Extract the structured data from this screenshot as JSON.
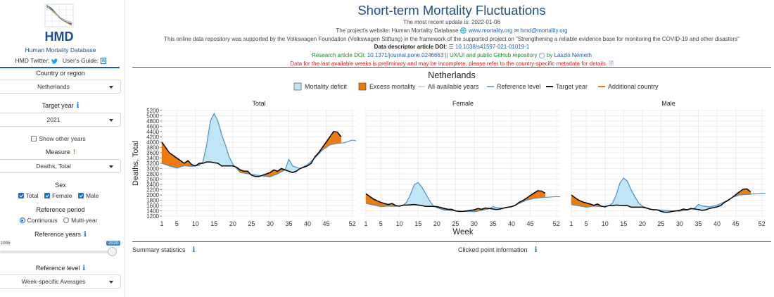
{
  "sidebar": {
    "logo_text": "HMD",
    "logo_name": "Human Mortality Database",
    "twitter_label": "HMD Twitter:",
    "guide_label": "User's Guide:",
    "country_label": "Country or region",
    "country_value": "Netherlands",
    "target_year_label": "Target year",
    "target_year_value": "2021",
    "show_other_years_label": "Show other years",
    "measure_label": "Measure",
    "measure_value": "Deaths, Total",
    "sex_label": "Sex",
    "sex_options": [
      "Total",
      "Female",
      "Male"
    ],
    "reference_period_label": "Reference period",
    "reference_period_options": [
      "Continuous",
      "Multi-year"
    ],
    "reference_years_label": "Reference years",
    "reference_years_min": "1995",
    "reference_years_max": "2020",
    "reference_level_label": "Reference level",
    "reference_level_value": "Week-specific Averages"
  },
  "header": {
    "title": "Short-term Mortality Fluctuations",
    "update_line": "The most recent update is: 2022-01-06",
    "website_prefix": "The project's website: Human Mortality Database",
    "website_link": "www.mortality.org",
    "email_link": "hmd@mortality.org",
    "funding_line": "This online data repository was supported by the Volkswagen Foundation (Volkswagen Stiftung) in the framework of the supported project on \"Strengthening a reliable evidence base for monitoring the COVID-19 and other disasters\"",
    "descriptor_label": "Data descriptor article DOI:",
    "descriptor_doi": "10.1038/s41597-021-01019-1",
    "research_label": "Research article DOI:",
    "research_doi": "10.1371/journal.pone.0246663",
    "ux_text": "|| UX/UI and public GitHub repository",
    "by_text": "by",
    "author": "László Németh",
    "warning": "Data for the last available weeks is preliminary and may be incomplete, please refer to the country-specific metadata for details."
  },
  "colors": {
    "accent": "#1f5f97",
    "deficit": "#bfe6f5",
    "excess": "#ee7a0e",
    "reference": "#4d8fc9",
    "target": "#000000",
    "other_years": "#d4d4d4"
  },
  "chart_data": {
    "type": "area",
    "country": "Netherlands",
    "ylabel": "Deaths, Total",
    "xlabel": "Week",
    "legend": [
      "Mortality deficit",
      "Excess mortality",
      "All available years",
      "Reference level",
      "Target year",
      "Additional country"
    ],
    "x_ticks": [
      1,
      5,
      10,
      15,
      20,
      25,
      30,
      35,
      40,
      45,
      52
    ],
    "y_ticks": [
      1200,
      1400,
      1600,
      1800,
      2000,
      2200,
      2400,
      2600,
      2800,
      3000,
      3200,
      3400,
      3600,
      3800,
      4000,
      4200,
      4400,
      4600,
      4800,
      5000,
      5200
    ],
    "ylim": [
      1150,
      5250
    ],
    "panels": [
      {
        "name": "Total",
        "reference": [
          [
            1,
            3200
          ],
          [
            3,
            3100
          ],
          [
            5,
            3020
          ],
          [
            7,
            3110
          ],
          [
            9,
            3080
          ],
          [
            11,
            3120
          ],
          [
            12,
            3260
          ],
          [
            13,
            3900
          ],
          [
            14,
            4800
          ],
          [
            15,
            5080
          ],
          [
            16,
            4800
          ],
          [
            17,
            4300
          ],
          [
            18,
            3900
          ],
          [
            19,
            3450
          ],
          [
            20,
            3170
          ],
          [
            22,
            2850
          ],
          [
            25,
            2780
          ],
          [
            28,
            2720
          ],
          [
            30,
            2690
          ],
          [
            32,
            2800
          ],
          [
            34,
            2950
          ],
          [
            35,
            3350
          ],
          [
            36,
            3100
          ],
          [
            38,
            3000
          ],
          [
            40,
            3150
          ],
          [
            42,
            3400
          ],
          [
            44,
            3700
          ],
          [
            46,
            3900
          ],
          [
            48,
            3950
          ],
          [
            50,
            3980
          ],
          [
            52,
            4080
          ],
          [
            53,
            4050
          ]
        ],
        "target": [
          [
            1,
            4000
          ],
          [
            2,
            3800
          ],
          [
            3,
            3600
          ],
          [
            4,
            3500
          ],
          [
            5,
            3400
          ],
          [
            6,
            3300
          ],
          [
            7,
            3200
          ],
          [
            8,
            3300
          ],
          [
            9,
            3150
          ],
          [
            10,
            3100
          ],
          [
            11,
            3200
          ],
          [
            12,
            3200
          ],
          [
            13,
            3250
          ],
          [
            14,
            3250
          ],
          [
            15,
            3220
          ],
          [
            16,
            3200
          ],
          [
            17,
            3100
          ],
          [
            18,
            3100
          ],
          [
            19,
            3100
          ],
          [
            20,
            3100
          ],
          [
            21,
            3050
          ],
          [
            22,
            2950
          ],
          [
            23,
            2900
          ],
          [
            24,
            2900
          ],
          [
            25,
            2750
          ],
          [
            26,
            2700
          ],
          [
            27,
            2700
          ],
          [
            28,
            2750
          ],
          [
            29,
            2800
          ],
          [
            30,
            2850
          ],
          [
            31,
            2950
          ],
          [
            32,
            2900
          ],
          [
            33,
            3000
          ],
          [
            34,
            2950
          ],
          [
            35,
            2900
          ],
          [
            36,
            2850
          ],
          [
            37,
            2900
          ],
          [
            38,
            3000
          ],
          [
            39,
            3050
          ],
          [
            40,
            3100
          ],
          [
            41,
            3200
          ],
          [
            42,
            3450
          ],
          [
            43,
            3600
          ],
          [
            44,
            3800
          ],
          [
            45,
            4000
          ],
          [
            46,
            4200
          ],
          [
            47,
            4400
          ],
          [
            48,
            4380
          ],
          [
            49,
            4200
          ]
        ]
      },
      {
        "name": "Female",
        "reference": [
          [
            1,
            1680
          ],
          [
            3,
            1620
          ],
          [
            5,
            1560
          ],
          [
            7,
            1580
          ],
          [
            9,
            1570
          ],
          [
            11,
            1600
          ],
          [
            12,
            1750
          ],
          [
            13,
            2050
          ],
          [
            14,
            2400
          ],
          [
            15,
            2470
          ],
          [
            16,
            2300
          ],
          [
            17,
            2050
          ],
          [
            18,
            1800
          ],
          [
            19,
            1600
          ],
          [
            20,
            1520
          ],
          [
            22,
            1430
          ],
          [
            25,
            1400
          ],
          [
            28,
            1380
          ],
          [
            30,
            1370
          ],
          [
            32,
            1420
          ],
          [
            34,
            1480
          ],
          [
            35,
            1560
          ],
          [
            36,
            1520
          ],
          [
            38,
            1500
          ],
          [
            40,
            1560
          ],
          [
            42,
            1680
          ],
          [
            44,
            1800
          ],
          [
            46,
            1870
          ],
          [
            48,
            1900
          ],
          [
            50,
            1920
          ],
          [
            52,
            1940
          ],
          [
            53,
            1930
          ]
        ],
        "target": [
          [
            1,
            2050
          ],
          [
            2,
            1950
          ],
          [
            3,
            1850
          ],
          [
            4,
            1780
          ],
          [
            5,
            1720
          ],
          [
            6,
            1680
          ],
          [
            7,
            1640
          ],
          [
            8,
            1680
          ],
          [
            9,
            1600
          ],
          [
            10,
            1580
          ],
          [
            11,
            1620
          ],
          [
            12,
            1620
          ],
          [
            13,
            1630
          ],
          [
            14,
            1640
          ],
          [
            15,
            1620
          ],
          [
            16,
            1600
          ],
          [
            17,
            1570
          ],
          [
            18,
            1570
          ],
          [
            19,
            1570
          ],
          [
            20,
            1560
          ],
          [
            21,
            1530
          ],
          [
            22,
            1490
          ],
          [
            23,
            1460
          ],
          [
            24,
            1460
          ],
          [
            25,
            1400
          ],
          [
            26,
            1380
          ],
          [
            27,
            1380
          ],
          [
            28,
            1400
          ],
          [
            29,
            1420
          ],
          [
            30,
            1440
          ],
          [
            31,
            1490
          ],
          [
            32,
            1460
          ],
          [
            33,
            1510
          ],
          [
            34,
            1490
          ],
          [
            35,
            1470
          ],
          [
            36,
            1450
          ],
          [
            37,
            1470
          ],
          [
            38,
            1510
          ],
          [
            39,
            1540
          ],
          [
            40,
            1560
          ],
          [
            41,
            1610
          ],
          [
            42,
            1720
          ],
          [
            43,
            1790
          ],
          [
            44,
            1880
          ],
          [
            45,
            1980
          ],
          [
            46,
            2070
          ],
          [
            47,
            2160
          ],
          [
            48,
            2150
          ],
          [
            49,
            2070
          ]
        ]
      },
      {
        "name": "Male",
        "reference": [
          [
            1,
            1640
          ],
          [
            3,
            1590
          ],
          [
            5,
            1540
          ],
          [
            7,
            1580
          ],
          [
            9,
            1560
          ],
          [
            11,
            1590
          ],
          [
            12,
            1690
          ],
          [
            13,
            2000
          ],
          [
            14,
            2450
          ],
          [
            15,
            2640
          ],
          [
            16,
            2520
          ],
          [
            17,
            2200
          ],
          [
            18,
            1940
          ],
          [
            19,
            1700
          ],
          [
            20,
            1580
          ],
          [
            22,
            1460
          ],
          [
            25,
            1430
          ],
          [
            28,
            1400
          ],
          [
            30,
            1390
          ],
          [
            32,
            1430
          ],
          [
            34,
            1500
          ],
          [
            35,
            1640
          ],
          [
            36,
            1590
          ],
          [
            38,
            1550
          ],
          [
            40,
            1610
          ],
          [
            42,
            1740
          ],
          [
            44,
            1900
          ],
          [
            46,
            2000
          ],
          [
            48,
            2020
          ],
          [
            50,
            2040
          ],
          [
            52,
            2070
          ],
          [
            53,
            2060
          ]
        ],
        "target": [
          [
            1,
            2000
          ],
          [
            2,
            1900
          ],
          [
            3,
            1800
          ],
          [
            4,
            1740
          ],
          [
            5,
            1700
          ],
          [
            6,
            1660
          ],
          [
            7,
            1610
          ],
          [
            8,
            1660
          ],
          [
            9,
            1580
          ],
          [
            10,
            1550
          ],
          [
            11,
            1600
          ],
          [
            12,
            1600
          ],
          [
            13,
            1620
          ],
          [
            14,
            1610
          ],
          [
            15,
            1600
          ],
          [
            16,
            1600
          ],
          [
            17,
            1540
          ],
          [
            18,
            1540
          ],
          [
            19,
            1540
          ],
          [
            20,
            1540
          ],
          [
            21,
            1510
          ],
          [
            22,
            1470
          ],
          [
            23,
            1440
          ],
          [
            24,
            1440
          ],
          [
            25,
            1380
          ],
          [
            26,
            1350
          ],
          [
            27,
            1350
          ],
          [
            28,
            1380
          ],
          [
            29,
            1400
          ],
          [
            30,
            1420
          ],
          [
            31,
            1470
          ],
          [
            32,
            1440
          ],
          [
            33,
            1490
          ],
          [
            34,
            1470
          ],
          [
            35,
            1450
          ],
          [
            36,
            1420
          ],
          [
            37,
            1440
          ],
          [
            38,
            1490
          ],
          [
            39,
            1520
          ],
          [
            40,
            1550
          ],
          [
            41,
            1600
          ],
          [
            42,
            1720
          ],
          [
            43,
            1800
          ],
          [
            44,
            1900
          ],
          [
            45,
            2010
          ],
          [
            46,
            2120
          ],
          [
            47,
            2220
          ],
          [
            48,
            2230
          ],
          [
            49,
            2120
          ]
        ]
      }
    ]
  },
  "footer": {
    "summary_label": "Summary statistics",
    "clicked_label": "Clicked point information"
  }
}
